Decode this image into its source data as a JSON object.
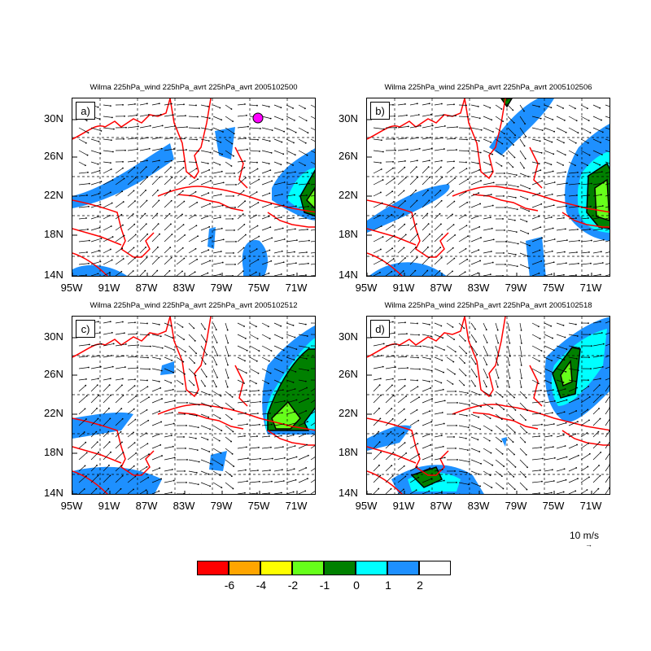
{
  "panels": [
    {
      "label": "a)",
      "title": "Wilma 225hPa_wind 225hPa_avrt 225hPa_avrt 2005102500"
    },
    {
      "label": "b)",
      "title": "Wilma 225hPa_wind 225hPa_avrt 225hPa_avrt 2005102506"
    },
    {
      "label": "c)",
      "title": "Wilma 225hPa_wind 225hPa_avrt 225hPa_avrt 2005102512"
    },
    {
      "label": "d)",
      "title": "Wilma 225hPa_wind 225hPa_avrt 225hPa_avrt 2005102518"
    }
  ],
  "axes": {
    "lat_labels": [
      "30N",
      "26N",
      "22N",
      "18N",
      "14N"
    ],
    "lon_labels": [
      "95W",
      "91W",
      "87W",
      "83W",
      "79W",
      "75W",
      "71W"
    ]
  },
  "reference_vector": {
    "label": "10 m/s",
    "arrow": "→"
  },
  "legend": {
    "colors": [
      "#ff0000",
      "#ffa500",
      "#ffff00",
      "#66ff1a",
      "#008000",
      "#00ffff",
      "#1e90ff",
      "#ffffff"
    ],
    "labels": [
      "-6",
      "-4",
      "-2",
      "-1",
      "0",
      "1",
      "2"
    ]
  },
  "styles": {
    "coastline_color": "#ff0000",
    "grid_color": "#000000",
    "vector_color": "#000000"
  }
}
